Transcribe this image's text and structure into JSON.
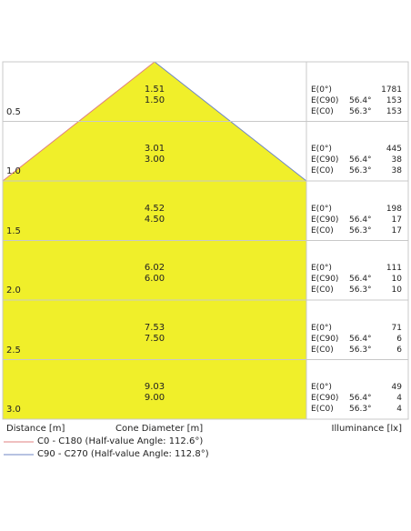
{
  "rows": [
    {
      "distance": "0.5",
      "c90": "1.51",
      "c0": "1.50",
      "e0": "1781",
      "ec90": "153",
      "ec0": "153"
    },
    {
      "distance": "1.0",
      "c90": "3.01",
      "c0": "3.00",
      "e0": "445",
      "ec90": "38",
      "ec0": "38"
    },
    {
      "distance": "1.5",
      "c90": "4.52",
      "c0": "4.50",
      "e0": "198",
      "ec90": "17",
      "ec0": "17"
    },
    {
      "distance": "2.0",
      "c90": "6.02",
      "c0": "6.00",
      "e0": "111",
      "ec90": "10",
      "ec0": "10"
    },
    {
      "distance": "2.5",
      "c90": "7.53",
      "c0": "7.50",
      "e0": "71",
      "ec90": "6",
      "ec0": "6"
    },
    {
      "distance": "3.0",
      "c90": "9.03",
      "c0": "9.00",
      "e0": "49",
      "ec90": "4",
      "ec0": "4"
    }
  ],
  "labels": {
    "e0": "E(0°)",
    "ec90": "E(C90)",
    "ec0": "E(C0)"
  },
  "angles": {
    "c90": "56.4°",
    "c0": "56.3°"
  },
  "footer": {
    "distance": "Distance [m]",
    "cone": "Cone Diameter [m]",
    "illuminance": "Illuminance [lx]"
  },
  "legend": [
    {
      "text": "C0 - C180 (Half-value Angle: 112.6°)",
      "color": "#e08080"
    },
    {
      "text": "C90 - C270 (Half-value Angle: 112.8°)",
      "color": "#6f86c4"
    }
  ],
  "colors": {
    "cone_fill": "#f0ef2a",
    "grid": "#c8c8c8"
  }
}
